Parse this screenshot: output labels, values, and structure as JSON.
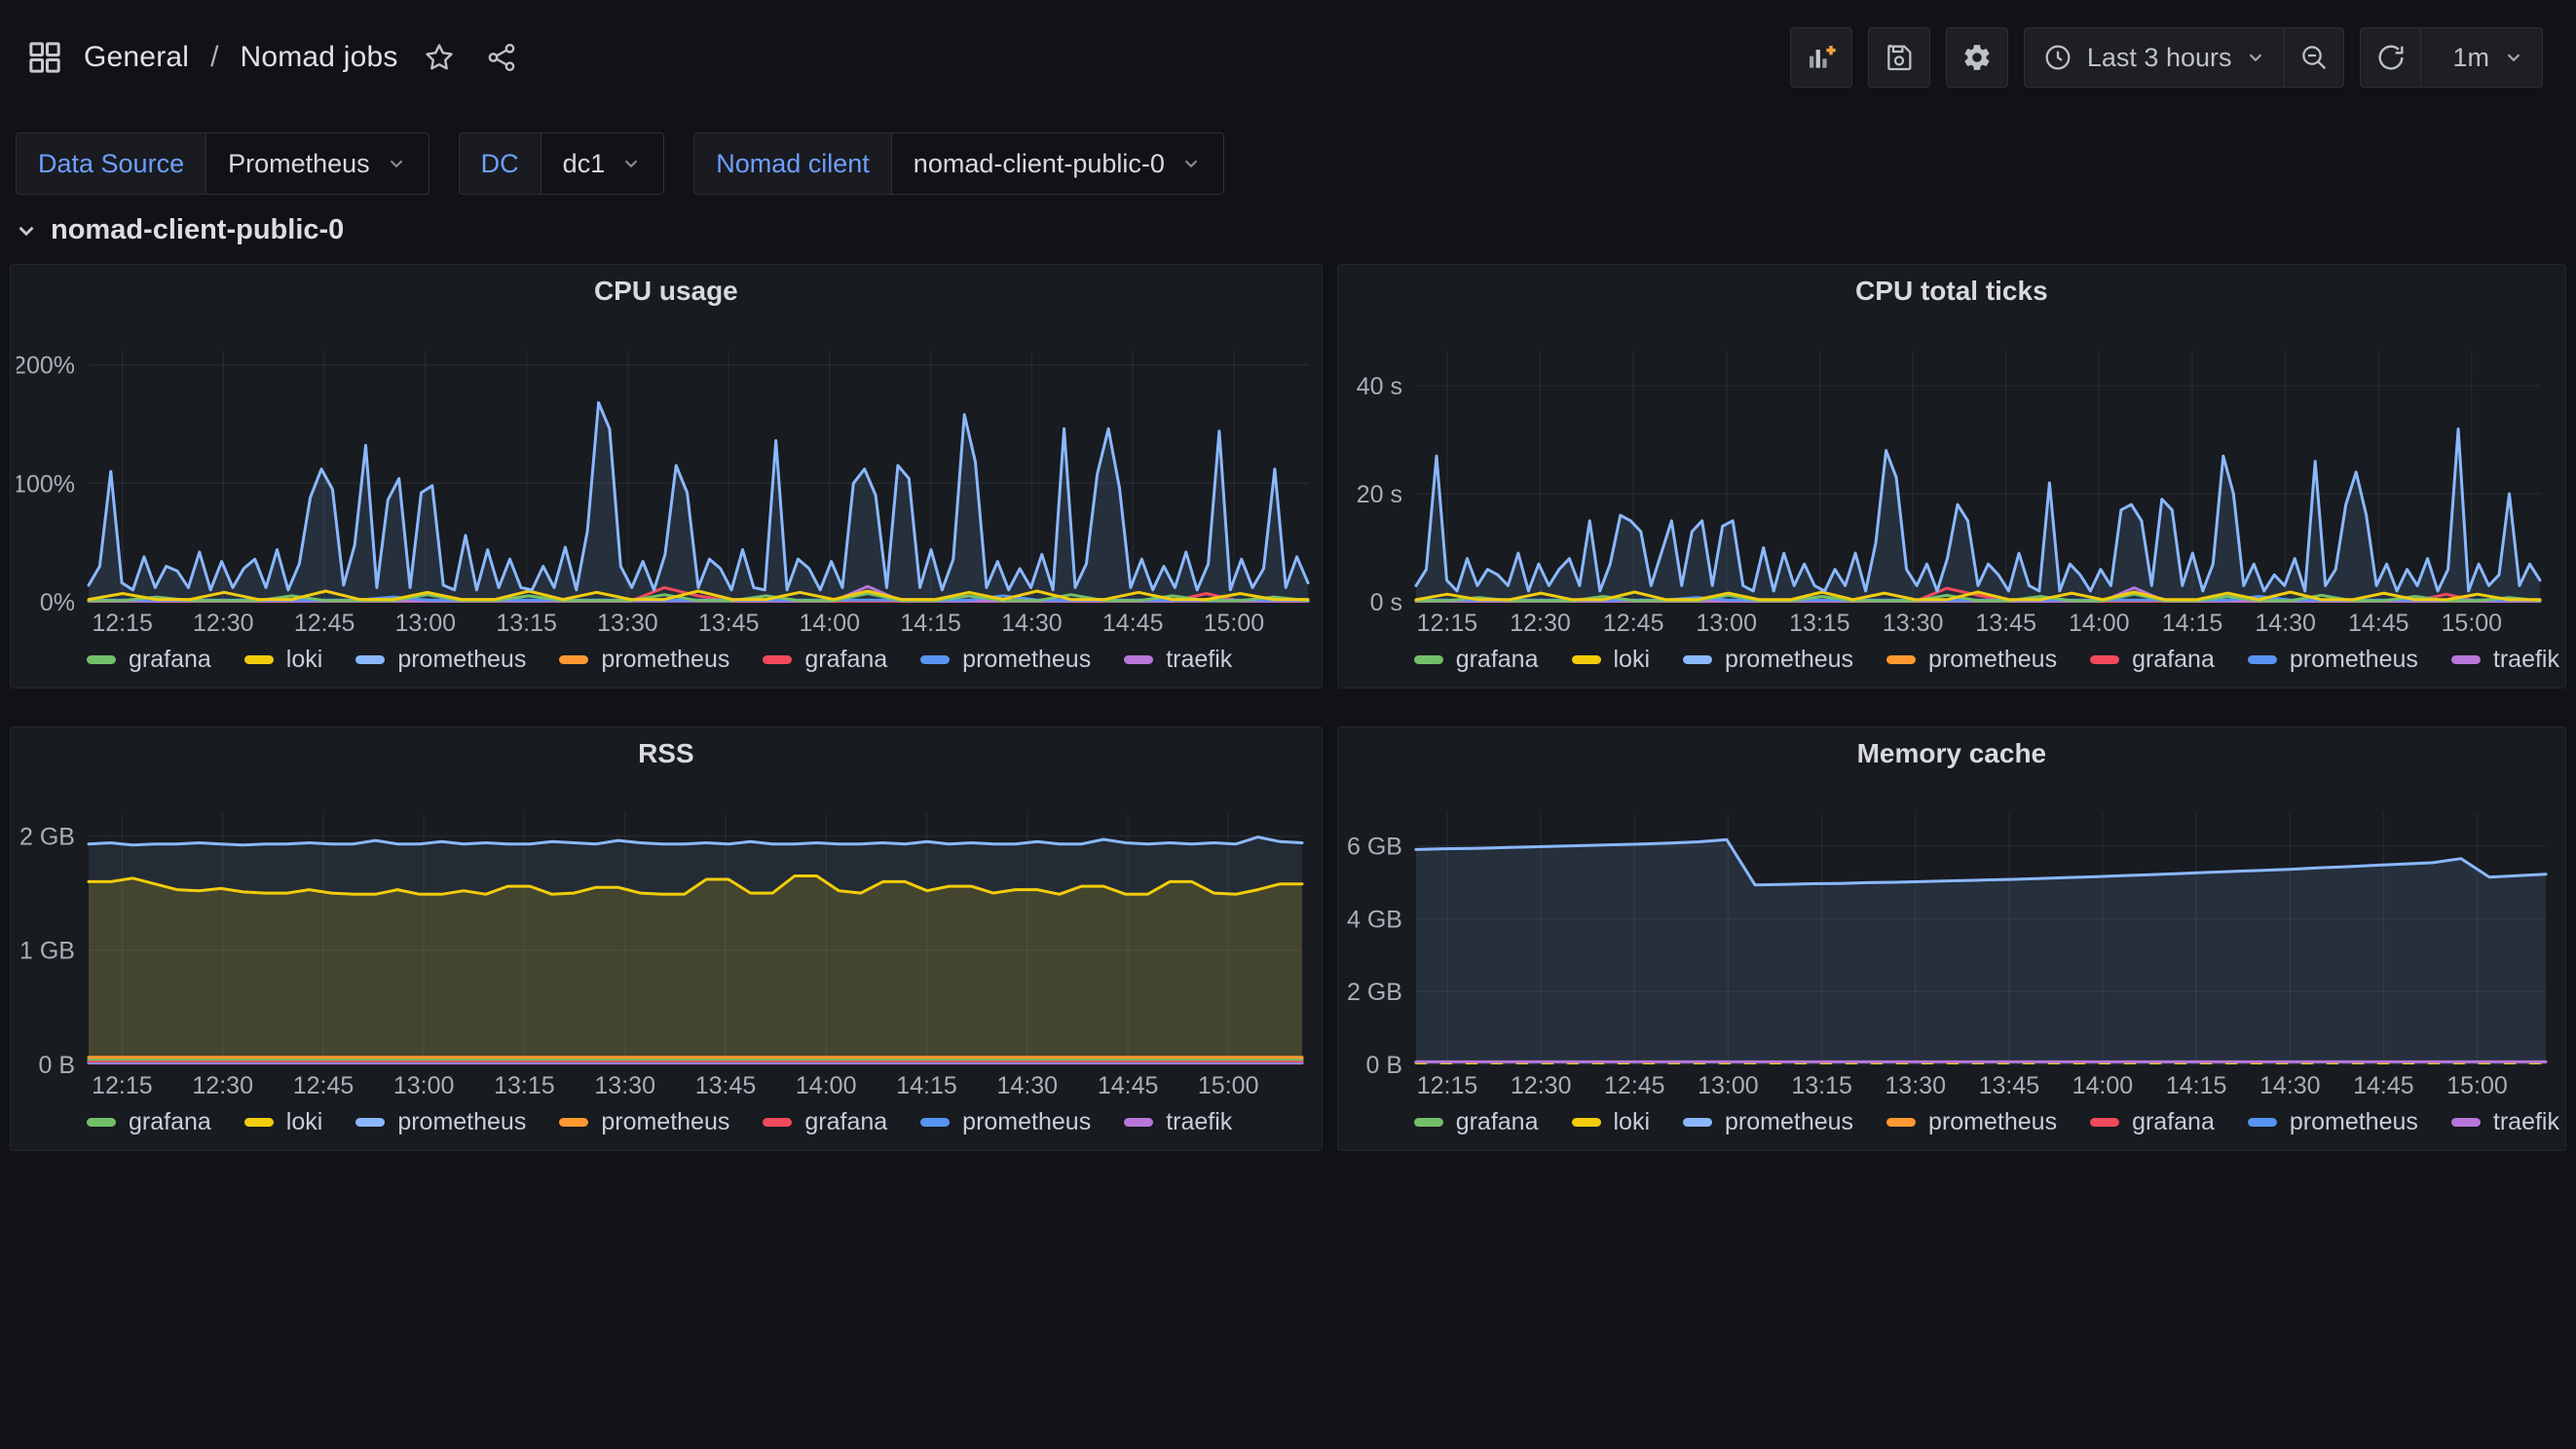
{
  "topbar": {
    "breadcrumb_folder": "General",
    "breadcrumb_sep": "/",
    "breadcrumb_page": "Nomad jobs",
    "time_range": "Last 3 hours",
    "refresh_interval": "1m",
    "icons": [
      "apps-grid",
      "star",
      "share",
      "add-panel",
      "save-dashboard",
      "dashboard-settings",
      "clock",
      "zoom-out",
      "refresh"
    ]
  },
  "filters": [
    {
      "label": "Data Source",
      "value": "Prometheus"
    },
    {
      "label": "DC",
      "value": "dc1"
    },
    {
      "label": "Nomad cilent",
      "value": "nomad-client-public-0"
    }
  ],
  "row": {
    "title": "nomad-client-public-0"
  },
  "colors": {
    "page_bg": "#111217",
    "panel_bg": "#181b1f",
    "accent_blue": "#6e9fff",
    "axis_text": "#abaeb8",
    "legend_text": "#ccccdc",
    "grid": "rgba(204,204,220,0.07)"
  },
  "legend": [
    {
      "name": "grafana",
      "color": "#73BF69"
    },
    {
      "name": "loki",
      "color": "#F2CC0C"
    },
    {
      "name": "prometheus",
      "color": "#8AB8FF"
    },
    {
      "name": "prometheus",
      "color": "#FF9830"
    },
    {
      "name": "grafana",
      "color": "#F2495C"
    },
    {
      "name": "prometheus",
      "color": "#5794F2"
    },
    {
      "name": "traefik",
      "color": "#B877D9"
    }
  ],
  "xaxis": {
    "labels": [
      "12:15",
      "12:30",
      "12:45",
      "13:00",
      "13:15",
      "13:30",
      "13:45",
      "14:00",
      "14:15",
      "14:30",
      "14:45",
      "15:00"
    ],
    "fracs": [
      0.0276,
      0.1105,
      0.1934,
      0.2762,
      0.3591,
      0.442,
      0.5249,
      0.6077,
      0.6906,
      0.7735,
      0.8564,
      0.9392
    ]
  },
  "chart_data": [
    {
      "type": "area",
      "title": "CPU usage",
      "ylabel": "percent",
      "ymax": 212,
      "yticks": [
        {
          "v": 0,
          "label": "0%"
        },
        {
          "v": 100,
          "label": "100%"
        },
        {
          "v": 200,
          "label": "200%"
        }
      ],
      "series": [
        {
          "name": "prometheus",
          "color": "#FF9830",
          "fill": 0,
          "values": [
            1,
            1
          ]
        },
        {
          "name": "grafana",
          "color": "#F2495C",
          "fill": 0,
          "values": [
            0.5,
            0.5,
            0.5,
            0.5,
            0.5,
            0.5,
            0.5,
            0.5,
            0.5,
            0.5,
            0.5,
            0.5,
            0.5,
            0.5,
            0.5,
            0.5,
            0.5,
            12,
            5,
            0.5,
            0.5,
            0.5,
            0.5,
            0.5,
            0.5,
            0.5,
            0.5,
            0.5,
            0.5,
            0.5,
            0.5,
            0.5,
            0.5,
            7,
            0.5,
            0.5,
            0.5
          ]
        },
        {
          "name": "traefik",
          "color": "#B877D9",
          "fill": 0,
          "values": [
            0.6,
            0.6,
            0.6,
            0.6,
            0.6,
            0.6,
            0.6,
            0.6,
            0.6,
            0.6,
            0.6,
            0.6,
            0.6,
            0.6,
            0.6,
            0.6,
            0.6,
            0.6,
            0.6,
            0.6,
            0.6,
            0.6,
            0.6,
            13,
            0.6,
            0.6,
            0.6,
            0.6,
            0.6,
            0.6,
            0.6,
            0.6,
            0.6,
            0.6,
            0.6,
            0.6,
            0.6
          ]
        },
        {
          "name": "prometheus",
          "color": "#5794F2",
          "fill": 0,
          "values": [
            1.5,
            1.5,
            1.5,
            1.5,
            1.5,
            1.5,
            1.5,
            1.5,
            1.5,
            4,
            1.5,
            1.5,
            1.5,
            1.5,
            1.5,
            1.5,
            1.5,
            1.5,
            1.5,
            1.5,
            1.5,
            1.5,
            1.5,
            1.5,
            1.5,
            1.5,
            1.5,
            5,
            1.5,
            1.5,
            1.5,
            1.5,
            1.5,
            1.5,
            1.5,
            1.5,
            1.5
          ]
        },
        {
          "name": "grafana",
          "color": "#73BF69",
          "fill": 0,
          "values": [
            1,
            1,
            4,
            1,
            1,
            1,
            5,
            1,
            1,
            1,
            6,
            1,
            1,
            5,
            1,
            1,
            1,
            6,
            1,
            1,
            5,
            1,
            1,
            7,
            1,
            1,
            5,
            1,
            1,
            6,
            1,
            1,
            5,
            1,
            1,
            4,
            1
          ]
        },
        {
          "name": "loki",
          "color": "#F2CC0C",
          "fill": 0,
          "values": [
            2,
            7,
            2,
            2,
            8,
            2,
            2,
            9,
            2,
            2,
            8,
            2,
            2,
            9,
            2,
            8,
            2,
            2,
            9,
            2,
            2,
            8,
            2,
            9,
            2,
            2,
            8,
            2,
            9,
            2,
            2,
            8,
            2,
            2,
            7,
            2,
            2
          ]
        },
        {
          "name": "prometheus",
          "color": "#8AB8FF",
          "fill": 0.13,
          "values": [
            14,
            30,
            110,
            16,
            10,
            38,
            12,
            30,
            26,
            12,
            42,
            10,
            34,
            12,
            28,
            36,
            12,
            44,
            10,
            32,
            88,
            112,
            95,
            14,
            48,
            132,
            12,
            86,
            104,
            12,
            92,
            98,
            14,
            10,
            56,
            10,
            44,
            12,
            36,
            12,
            10,
            30,
            12,
            46,
            10,
            60,
            168,
            146,
            30,
            12,
            34,
            10,
            40,
            115,
            92,
            12,
            36,
            28,
            10,
            44,
            12,
            10,
            136,
            10,
            36,
            28,
            10,
            34,
            12,
            100,
            112,
            90,
            12,
            115,
            104,
            12,
            44,
            10,
            36,
            158,
            118,
            12,
            34,
            10,
            28,
            12,
            40,
            10,
            146,
            12,
            32,
            108,
            146,
            96,
            12,
            36,
            10,
            30,
            12,
            42,
            10,
            32,
            144,
            10,
            36,
            12,
            28,
            112,
            12,
            38,
            16
          ]
        }
      ]
    },
    {
      "type": "area",
      "title": "CPU total ticks",
      "ylabel": "seconds",
      "ymax": 46.5,
      "yticks": [
        {
          "v": 0,
          "label": "0 s"
        },
        {
          "v": 20,
          "label": "20 s"
        },
        {
          "v": 40,
          "label": "40 s"
        }
      ],
      "series": [
        {
          "name": "prometheus",
          "color": "#FF9830",
          "fill": 0,
          "values": [
            0.15,
            0.15
          ]
        },
        {
          "name": "grafana",
          "color": "#F2495C",
          "fill": 0,
          "values": [
            0.1,
            0.1,
            0.1,
            0.1,
            0.1,
            0.1,
            0.1,
            0.1,
            0.1,
            0.1,
            0.1,
            0.1,
            0.1,
            0.1,
            0.1,
            0.1,
            0.1,
            2.5,
            1.2,
            0.1,
            0.1,
            0.1,
            0.1,
            0.1,
            0.1,
            0.1,
            0.1,
            0.1,
            0.1,
            0.1,
            0.1,
            0.1,
            0.1,
            1.4,
            0.1,
            0.1,
            0.1
          ]
        },
        {
          "name": "traefik",
          "color": "#B877D9",
          "fill": 0,
          "values": [
            0.12,
            0.12,
            0.12,
            0.12,
            0.12,
            0.12,
            0.12,
            0.12,
            0.12,
            0.12,
            0.12,
            0.12,
            0.12,
            0.12,
            0.12,
            0.12,
            0.12,
            0.12,
            0.12,
            0.12,
            0.12,
            0.12,
            0.12,
            2.6,
            0.12,
            0.12,
            0.12,
            0.12,
            0.12,
            0.12,
            0.12,
            0.12,
            0.12,
            0.12,
            0.12,
            0.12,
            0.12
          ]
        },
        {
          "name": "prometheus",
          "color": "#5794F2",
          "fill": 0,
          "values": [
            0.3,
            0.3,
            0.3,
            0.3,
            0.3,
            0.3,
            0.3,
            0.3,
            0.3,
            0.8,
            0.3,
            0.3,
            0.3,
            0.3,
            0.3,
            0.3,
            0.3,
            0.3,
            0.3,
            0.3,
            0.3,
            0.3,
            0.3,
            0.3,
            0.3,
            0.3,
            0.3,
            1.0,
            0.3,
            0.3,
            0.3,
            0.3,
            0.3,
            0.3,
            0.3,
            0.3,
            0.3
          ]
        },
        {
          "name": "grafana",
          "color": "#73BF69",
          "fill": 0,
          "values": [
            0.2,
            0.2,
            0.8,
            0.2,
            0.2,
            0.2,
            1.0,
            0.2,
            0.2,
            0.2,
            1.2,
            0.2,
            0.2,
            1.0,
            0.2,
            0.2,
            0.2,
            1.2,
            0.2,
            0.2,
            1.0,
            0.2,
            0.2,
            1.4,
            0.2,
            0.2,
            1.0,
            0.2,
            0.2,
            1.2,
            0.2,
            0.2,
            1.0,
            0.2,
            0.2,
            0.8,
            0.2
          ]
        },
        {
          "name": "loki",
          "color": "#F2CC0C",
          "fill": 0,
          "values": [
            0.4,
            1.4,
            0.4,
            0.4,
            1.6,
            0.4,
            0.4,
            1.8,
            0.4,
            0.4,
            1.6,
            0.4,
            0.4,
            1.8,
            0.4,
            1.6,
            0.4,
            0.4,
            1.8,
            0.4,
            0.4,
            1.6,
            0.4,
            1.8,
            0.4,
            0.4,
            1.6,
            0.4,
            1.8,
            0.4,
            0.4,
            1.6,
            0.4,
            0.4,
            1.4,
            0.4,
            0.4
          ]
        },
        {
          "name": "prometheus",
          "color": "#8AB8FF",
          "fill": 0.13,
          "values": [
            3,
            6,
            27,
            4,
            2,
            8,
            3,
            6,
            5,
            3,
            9,
            2,
            7,
            3,
            6,
            8,
            3,
            15,
            2,
            7,
            16,
            15,
            13,
            3,
            9,
            15,
            3,
            13,
            15,
            3,
            14,
            15,
            3,
            2,
            10,
            2,
            9,
            3,
            7,
            3,
            2,
            6,
            3,
            9,
            2,
            11,
            28,
            23,
            6,
            3,
            7,
            2,
            8,
            18,
            15,
            3,
            7,
            5,
            2,
            9,
            3,
            2,
            22,
            2,
            7,
            5,
            2,
            6,
            3,
            17,
            18,
            15,
            3,
            19,
            17,
            3,
            9,
            2,
            7,
            27,
            20,
            3,
            7,
            2,
            5,
            3,
            8,
            2,
            26,
            3,
            6,
            18,
            24,
            16,
            3,
            7,
            2,
            6,
            3,
            8,
            2,
            6,
            32,
            2,
            7,
            3,
            5,
            20,
            3,
            7,
            4
          ]
        }
      ]
    },
    {
      "type": "area",
      "title": "RSS",
      "ylabel": "bytes",
      "ymax": 2.2,
      "yticks": [
        {
          "v": 0,
          "label": "0 B"
        },
        {
          "v": 1,
          "label": "1 GB"
        },
        {
          "v": 2,
          "label": "2 GB"
        }
      ],
      "series": [
        {
          "name": "traefik",
          "color": "#B877D9",
          "fill": 0,
          "values": [
            0.012,
            0.012
          ]
        },
        {
          "name": "prometheus",
          "color": "#5794F2",
          "fill": 0,
          "values": [
            0.022,
            0.022
          ]
        },
        {
          "name": "grafana",
          "color": "#F2495C",
          "fill": 0,
          "values": [
            0.03,
            0.03
          ]
        },
        {
          "name": "grafana",
          "color": "#73BF69",
          "fill": 0,
          "values": [
            0.045,
            0.045
          ]
        },
        {
          "name": "prometheus",
          "color": "#FF9830",
          "fill": 0,
          "values": [
            0.062,
            0.062
          ]
        },
        {
          "name": "loki",
          "color": "#F2CC0C",
          "fill": 0.16,
          "values": [
            1.6,
            1.6,
            1.63,
            1.58,
            1.53,
            1.52,
            1.54,
            1.51,
            1.5,
            1.5,
            1.53,
            1.5,
            1.49,
            1.49,
            1.53,
            1.49,
            1.49,
            1.52,
            1.49,
            1.56,
            1.56,
            1.49,
            1.5,
            1.55,
            1.55,
            1.5,
            1.49,
            1.49,
            1.62,
            1.62,
            1.5,
            1.5,
            1.65,
            1.65,
            1.52,
            1.5,
            1.6,
            1.6,
            1.52,
            1.56,
            1.56,
            1.5,
            1.53,
            1.53,
            1.49,
            1.56,
            1.56,
            1.49,
            1.49,
            1.6,
            1.6,
            1.5,
            1.49,
            1.53,
            1.58,
            1.58
          ]
        },
        {
          "name": "prometheus",
          "color": "#8AB8FF",
          "fill": 0.1,
          "values": [
            1.93,
            1.94,
            1.92,
            1.93,
            1.93,
            1.94,
            1.93,
            1.92,
            1.93,
            1.93,
            1.94,
            1.93,
            1.93,
            1.96,
            1.93,
            1.93,
            1.95,
            1.93,
            1.94,
            1.93,
            1.93,
            1.95,
            1.94,
            1.93,
            1.96,
            1.94,
            1.93,
            1.93,
            1.94,
            1.93,
            1.95,
            1.93,
            1.93,
            1.94,
            1.93,
            1.93,
            1.94,
            1.93,
            1.95,
            1.93,
            1.94,
            1.93,
            1.93,
            1.95,
            1.93,
            1.93,
            1.97,
            1.94,
            1.93,
            1.94,
            1.93,
            1.94,
            1.93,
            1.99,
            1.95,
            1.94
          ]
        }
      ]
    },
    {
      "type": "area",
      "title": "Memory cache",
      "ylabel": "bytes",
      "ymax": 6.9,
      "yticks": [
        {
          "v": 0,
          "label": "0 B"
        },
        {
          "v": 2,
          "label": "2 GB"
        },
        {
          "v": 4,
          "label": "4 GB"
        },
        {
          "v": 6,
          "label": "6 GB"
        }
      ],
      "series": [
        {
          "name": "loki",
          "color": "#F2CC0C",
          "fill": 0,
          "dash": "10 16",
          "values": [
            0.04,
            0.04
          ]
        },
        {
          "name": "traefik",
          "color": "#B877D9",
          "fill": 0,
          "values": [
            0.07,
            0.07
          ]
        },
        {
          "name": "prometheus",
          "color": "#8AB8FF",
          "fill": 0.13,
          "values": [
            5.9,
            5.92,
            5.93,
            5.95,
            5.97,
            5.99,
            6.01,
            6.03,
            6.05,
            6.08,
            6.11,
            6.17,
            4.93,
            4.94,
            4.96,
            4.97,
            4.99,
            5.0,
            5.02,
            5.04,
            5.06,
            5.08,
            5.1,
            5.13,
            5.15,
            5.18,
            5.21,
            5.24,
            5.27,
            5.3,
            5.33,
            5.36,
            5.4,
            5.43,
            5.47,
            5.5,
            5.54,
            5.65,
            5.14,
            5.18,
            5.22
          ]
        }
      ]
    }
  ]
}
